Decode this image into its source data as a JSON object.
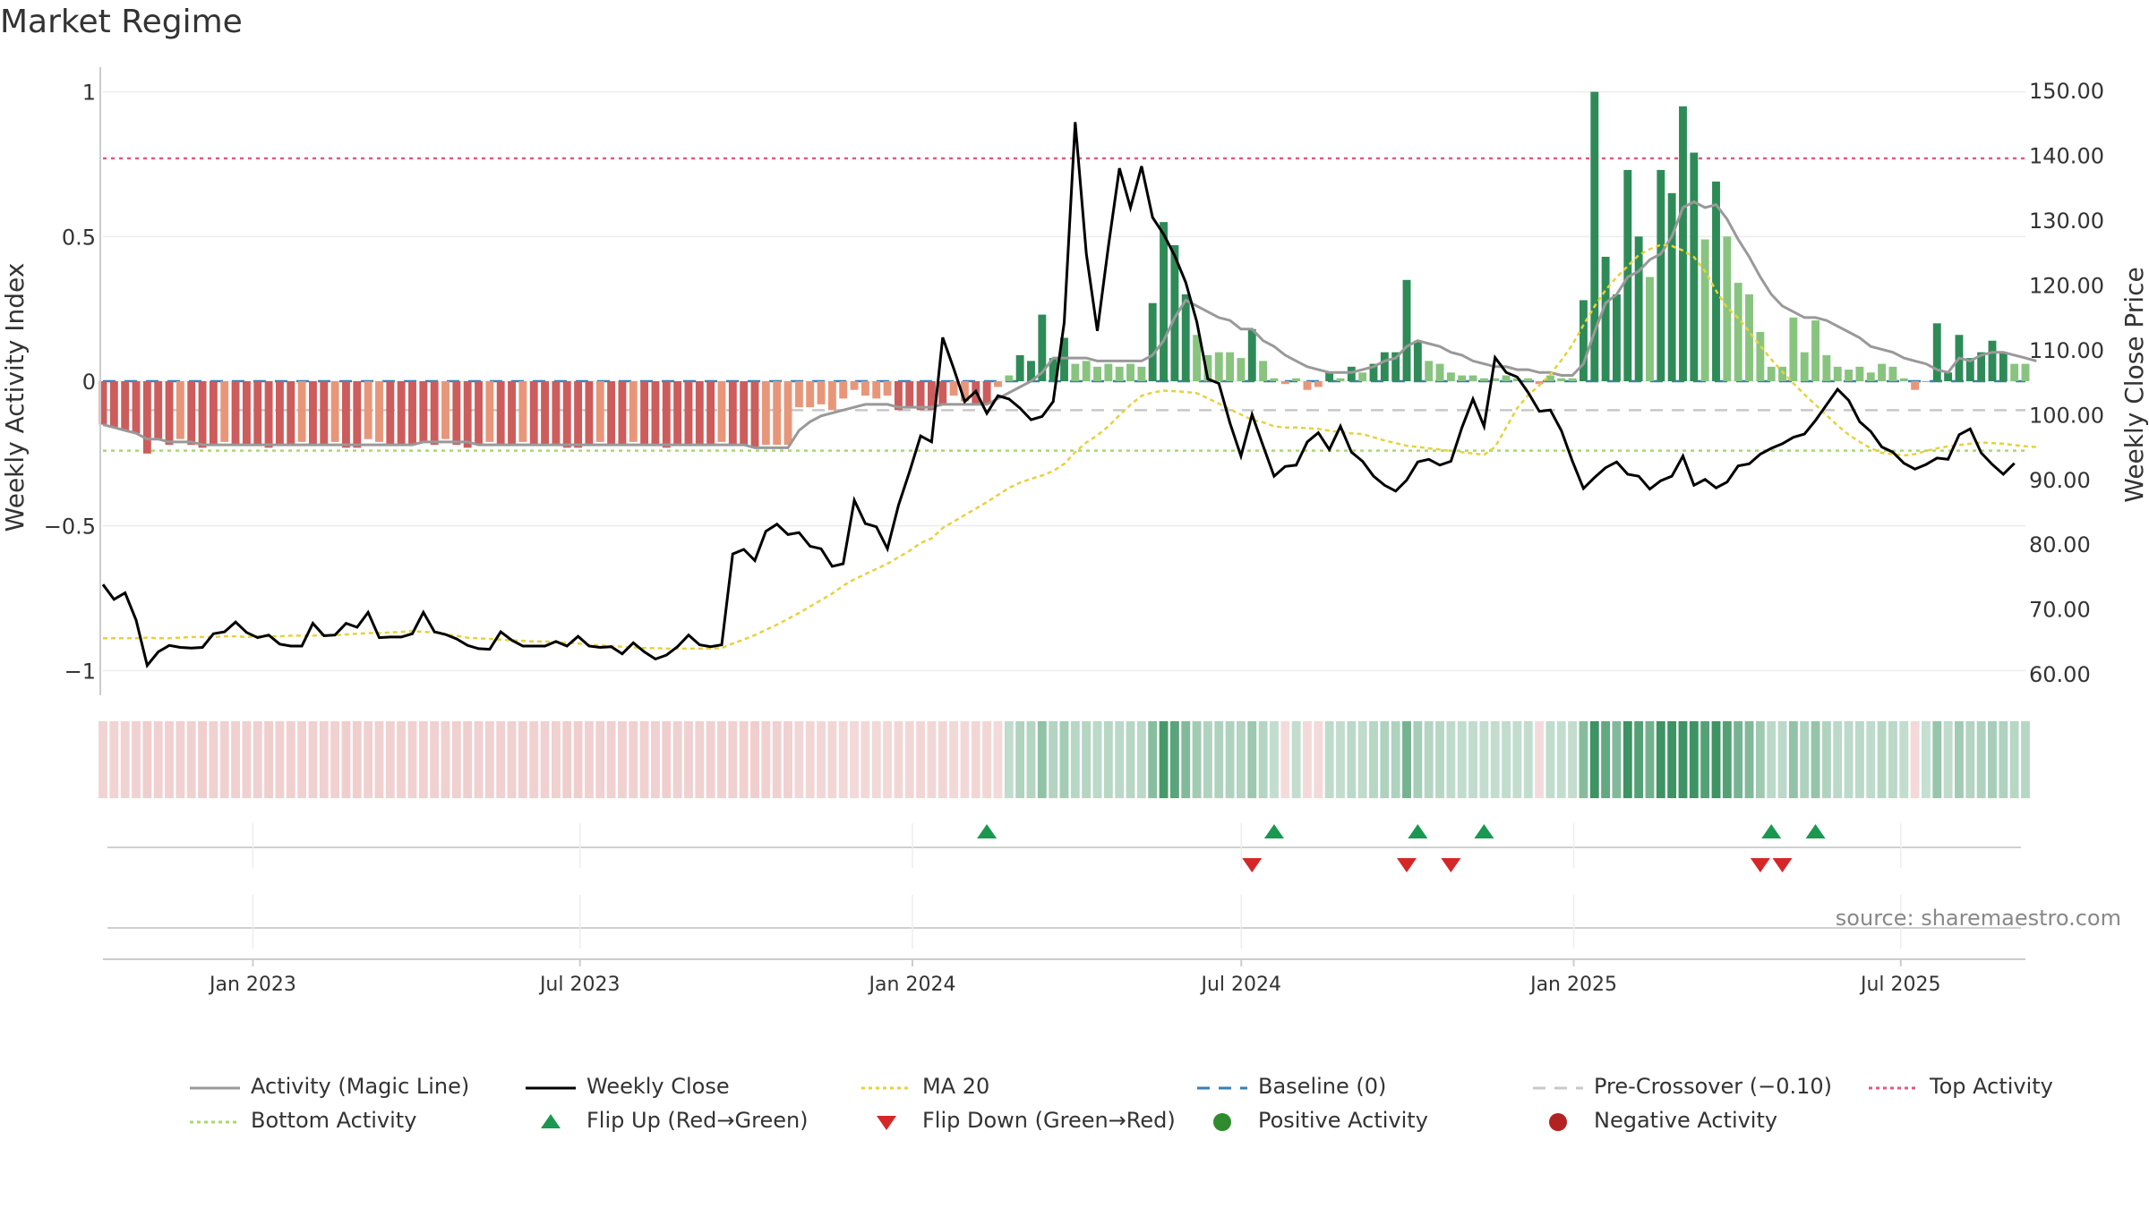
{
  "title": "Market Regime",
  "source": "source: sharemaestro.com",
  "chart_data": {
    "type": "bar",
    "description_free": true,
    "left_axis": {
      "label": "Weekly Activity Index",
      "ylim": [
        -1.07,
        1.07
      ],
      "ticks": [
        1,
        0.5,
        0,
        -0.5,
        -1
      ],
      "tick_labels": [
        "1",
        "0.5",
        "0",
        "−0.5",
        "−1"
      ]
    },
    "right_axis": {
      "label": "Weekly Close Price",
      "ylim": [
        57.4,
        152.9
      ],
      "ticks": [
        150,
        140,
        130,
        120,
        110,
        100,
        90,
        80,
        70,
        60
      ],
      "tick_labels": [
        "150.00",
        "140.00",
        "130.00",
        "120.00",
        "110.00",
        "100.00",
        "90.00",
        "80.00",
        "70.00",
        "60.00"
      ]
    },
    "x_axis": {
      "start": "2022-10-10",
      "end": "2025-09-08",
      "ticks": [
        "2023-01-01",
        "2023-07-01",
        "2024-01-01",
        "2024-07-01",
        "2025-01-01",
        "2025-07-01"
      ],
      "tick_labels": [
        "Jan 2023",
        "Jul 2023",
        "Jan 2024",
        "Jul 2024",
        "Jan 2025",
        "Jul 2025"
      ]
    },
    "reference_lines": {
      "baseline": 0,
      "pre_crossover": -0.1,
      "top_activity": 0.77,
      "bottom_activity": -0.24
    },
    "activity": [
      -0.15,
      -0.16,
      -0.17,
      -0.18,
      -0.25,
      -0.2,
      -0.22,
      -0.2,
      -0.22,
      -0.23,
      -0.22,
      -0.21,
      -0.22,
      -0.22,
      -0.22,
      -0.23,
      -0.22,
      -0.22,
      -0.21,
      -0.22,
      -0.22,
      -0.21,
      -0.23,
      -0.23,
      -0.2,
      -0.21,
      -0.22,
      -0.22,
      -0.22,
      -0.21,
      -0.22,
      -0.2,
      -0.22,
      -0.23,
      -0.22,
      -0.21,
      -0.22,
      -0.22,
      -0.21,
      -0.22,
      -0.22,
      -0.22,
      -0.23,
      -0.23,
      -0.22,
      -0.21,
      -0.22,
      -0.22,
      -0.21,
      -0.22,
      -0.22,
      -0.23,
      -0.22,
      -0.22,
      -0.22,
      -0.22,
      -0.21,
      -0.22,
      -0.22,
      -0.23,
      -0.22,
      -0.22,
      -0.22,
      -0.09,
      -0.09,
      -0.08,
      -0.1,
      -0.06,
      -0.03,
      -0.05,
      -0.06,
      -0.05,
      -0.1,
      -0.09,
      -0.1,
      -0.1,
      -0.08,
      -0.05,
      -0.07,
      -0.08,
      -0.08,
      -0.02,
      0.02,
      0.09,
      0.07,
      0.23,
      0.08,
      0.15,
      0.06,
      0.07,
      0.05,
      0.06,
      0.05,
      0.06,
      0.05,
      0.27,
      0.55,
      0.47,
      0.3,
      0.16,
      0.09,
      0.1,
      0.1,
      0.08,
      0.18,
      0.07,
      0.01,
      -0.01,
      0.01,
      -0.03,
      -0.02,
      0.03,
      0.01,
      0.05,
      0.03,
      0.06,
      0.1,
      0.1,
      0.35,
      0.14,
      0.07,
      0.06,
      0.03,
      0.02,
      0.02,
      0.01,
      0.01,
      0.02,
      0.01,
      0.01,
      -0.01,
      0.02,
      0.01,
      0.01,
      0.28,
      1.0,
      0.43,
      0.3,
      0.73,
      0.5,
      0.36,
      0.73,
      0.65,
      0.95,
      0.79,
      0.49,
      0.69,
      0.5,
      0.34,
      0.3,
      0.17,
      0.05,
      0.05,
      0.22,
      0.1,
      0.21,
      0.09,
      0.05,
      0.04,
      0.05,
      0.03,
      0.06,
      0.05,
      0.01,
      -0.03,
      0.0,
      0.2,
      0.03,
      0.16,
      0.08,
      0.1,
      0.14,
      0.1,
      0.06,
      0.06
    ],
    "magic_line": [
      -0.15,
      -0.16,
      -0.17,
      -0.18,
      -0.2,
      -0.2,
      -0.21,
      -0.21,
      -0.21,
      -0.22,
      -0.22,
      -0.22,
      -0.22,
      -0.22,
      -0.22,
      -0.22,
      -0.22,
      -0.22,
      -0.22,
      -0.22,
      -0.22,
      -0.22,
      -0.22,
      -0.22,
      -0.22,
      -0.22,
      -0.22,
      -0.22,
      -0.22,
      -0.21,
      -0.21,
      -0.21,
      -0.21,
      -0.21,
      -0.22,
      -0.22,
      -0.22,
      -0.22,
      -0.22,
      -0.22,
      -0.22,
      -0.22,
      -0.22,
      -0.22,
      -0.22,
      -0.22,
      -0.22,
      -0.22,
      -0.22,
      -0.22,
      -0.22,
      -0.22,
      -0.22,
      -0.22,
      -0.22,
      -0.22,
      -0.22,
      -0.22,
      -0.22,
      -0.23,
      -0.23,
      -0.23,
      -0.23,
      -0.17,
      -0.14,
      -0.12,
      -0.11,
      -0.1,
      -0.09,
      -0.08,
      -0.08,
      -0.08,
      -0.09,
      -0.09,
      -0.09,
      -0.09,
      -0.08,
      -0.08,
      -0.08,
      -0.08,
      -0.08,
      -0.06,
      -0.04,
      -0.02,
      0.0,
      0.03,
      0.08,
      0.08,
      0.08,
      0.08,
      0.07,
      0.07,
      0.07,
      0.07,
      0.07,
      0.09,
      0.14,
      0.22,
      0.28,
      0.26,
      0.24,
      0.22,
      0.21,
      0.18,
      0.18,
      0.14,
      0.12,
      0.09,
      0.07,
      0.05,
      0.04,
      0.03,
      0.03,
      0.03,
      0.04,
      0.05,
      0.07,
      0.08,
      0.12,
      0.14,
      0.13,
      0.12,
      0.1,
      0.09,
      0.07,
      0.06,
      0.05,
      0.05,
      0.04,
      0.04,
      0.03,
      0.03,
      0.02,
      0.02,
      0.06,
      0.17,
      0.27,
      0.3,
      0.36,
      0.38,
      0.42,
      0.44,
      0.5,
      0.6,
      0.62,
      0.6,
      0.61,
      0.56,
      0.49,
      0.43,
      0.36,
      0.3,
      0.26,
      0.24,
      0.22,
      0.22,
      0.21,
      0.19,
      0.17,
      0.15,
      0.12,
      0.11,
      0.1,
      0.08,
      0.07,
      0.06,
      0.04,
      0.03,
      0.08,
      0.07,
      0.09,
      0.1,
      0.1,
      0.09,
      0.08,
      0.07
    ],
    "weekly_close": [
      73.8,
      71.5,
      72.5,
      68.3,
      61.3,
      63.4,
      64.4,
      64.1,
      64.0,
      64.1,
      66.2,
      66.5,
      68.0,
      66.4,
      65.6,
      66.0,
      64.6,
      64.3,
      64.3,
      67.8,
      65.9,
      66.0,
      67.8,
      67.2,
      69.5,
      65.6,
      65.7,
      65.7,
      66.2,
      69.5,
      66.5,
      66.1,
      65.4,
      64.4,
      63.9,
      63.8,
      66.5,
      65.2,
      64.3,
      64.3,
      64.3,
      65.0,
      64.3,
      65.8,
      64.3,
      64.1,
      64.2,
      63.1,
      64.8,
      63.4,
      62.3,
      62.9,
      64.2,
      66.0,
      64.5,
      64.2,
      64.5,
      78.5,
      79.2,
      77.5,
      82.0,
      83.1,
      81.5,
      81.8,
      79.7,
      79.3,
      76.6,
      77.0,
      86.8,
      83.2,
      82.7,
      79.3,
      86.0,
      91.2,
      96.7,
      95.8,
      111.9,
      107.1,
      102.0,
      103.6,
      100.2,
      102.9,
      102.4,
      101.0,
      99.2,
      99.7,
      102.0,
      114.2,
      145.1,
      124.8,
      112.9,
      126.0,
      138.0,
      131.9,
      138.3,
      130.4,
      127.8,
      124.5,
      120.4,
      114.3,
      105.5,
      104.8,
      98.7,
      93.6,
      100.0,
      95.2,
      90.5,
      92.0,
      92.2,
      95.8,
      97.2,
      94.6,
      98.2,
      94.2,
      92.8,
      90.5,
      89.1,
      88.2,
      89.9,
      92.7,
      93.1,
      92.2,
      92.8,
      98.0,
      102.4,
      98.2,
      108.8,
      106.5,
      105.8,
      103.4,
      100.5,
      100.7,
      97.5,
      92.8,
      88.6,
      90.3,
      91.8,
      92.7,
      90.8,
      90.5,
      88.5,
      89.8,
      90.5,
      93.6,
      89.1,
      90.0,
      88.7,
      89.6,
      92.1,
      92.4,
      93.9,
      94.8,
      95.5,
      96.5,
      97.0,
      99.1,
      101.5,
      103.9,
      102.2,
      98.9,
      97.4,
      95.0,
      94.2,
      92.5,
      91.6,
      92.3,
      93.3,
      93.1,
      96.9,
      97.8,
      94.1,
      92.3,
      90.8,
      92.5
    ],
    "ma20": [
      65.5,
      65.5,
      65.5,
      65.5,
      65.6,
      65.5,
      65.5,
      65.6,
      65.7,
      65.7,
      65.7,
      65.8,
      65.8,
      65.7,
      65.8,
      65.8,
      65.8,
      65.9,
      65.9,
      65.9,
      66.0,
      66.0,
      66.1,
      66.2,
      66.3,
      66.3,
      66.4,
      66.5,
      66.6,
      66.5,
      66.4,
      66.1,
      65.9,
      65.6,
      65.5,
      65.4,
      65.3,
      65.2,
      65.1,
      65.0,
      65.0,
      64.9,
      64.8,
      64.7,
      64.5,
      64.4,
      64.3,
      64.2,
      64.1,
      64.0,
      64.0,
      63.9,
      63.9,
      63.9,
      63.9,
      63.9,
      64.0,
      64.7,
      65.3,
      66.0,
      66.8,
      67.6,
      68.5,
      69.4,
      70.4,
      71.4,
      72.4,
      73.6,
      74.6,
      75.4,
      76.2,
      77.0,
      78.0,
      79.0,
      80.2,
      80.9,
      82.5,
      83.5,
      84.5,
      85.5,
      86.5,
      87.6,
      88.7,
      89.5,
      90.1,
      90.6,
      91.3,
      92.4,
      94.2,
      95.7,
      96.8,
      98.2,
      99.9,
      101.5,
      102.9,
      103.4,
      103.7,
      103.6,
      103.5,
      103.3,
      102.5,
      101.7,
      100.8,
      100.0,
      99.2,
      98.8,
      98.2,
      98.0,
      98.0,
      97.9,
      97.8,
      97.5,
      97.3,
      97.1,
      97.0,
      96.5,
      96.0,
      95.6,
      95.2,
      95.0,
      94.8,
      94.6,
      94.4,
      94.2,
      94.0,
      93.8,
      95.0,
      98.0,
      101.0,
      103.0,
      104.5,
      106.2,
      108.4,
      110.8,
      113.8,
      116.7,
      119.2,
      121.2,
      122.9,
      124.6,
      125.5,
      126.2,
      126.0,
      125.3,
      124.3,
      122.1,
      119.1,
      116.5,
      114.9,
      112.8,
      110.6,
      108.5,
      106.6,
      104.8,
      103.1,
      101.5,
      99.9,
      98.3,
      96.9,
      95.8,
      94.8,
      94.1,
      93.9,
      93.7,
      93.9,
      94.4,
      94.8,
      95.1,
      95.3,
      95.5,
      95.7,
      95.6,
      95.5,
      95.3,
      95.1,
      95.0
    ],
    "flip_up_weeks": [
      80,
      106,
      119,
      125,
      151,
      155
    ],
    "flip_down_weeks": [
      104,
      118,
      122,
      150,
      152
    ],
    "legend": [
      "Activity (Magic Line)",
      "Weekly Close",
      "MA 20",
      "Baseline (0)",
      "Pre-Crossover (−0.10)",
      "Top Activity",
      "Bottom Activity",
      "Flip Up (Red→Green)",
      "Flip Down (Green→Red)",
      "Positive Activity",
      "Negative Activity"
    ],
    "legend_placement": "bottom",
    "colors": {
      "magic_line": "#999999",
      "weekly_close": "#000000",
      "ma20": "#e6d23a",
      "baseline": "#3a7fb5",
      "pre_crossover": "#c8c8c8",
      "top_activity": "#e05a7f",
      "bottom_activity": "#a6d96a",
      "flip_up": "#1a9850",
      "flip_down": "#d62728",
      "positive_strong": "#2e8b57",
      "positive_light": "#88c47f",
      "negative_strong": "#cd5c5c",
      "negative_light": "#e8967a",
      "positive_marker": "#2e8b2e",
      "negative_marker": "#b22222"
    }
  }
}
